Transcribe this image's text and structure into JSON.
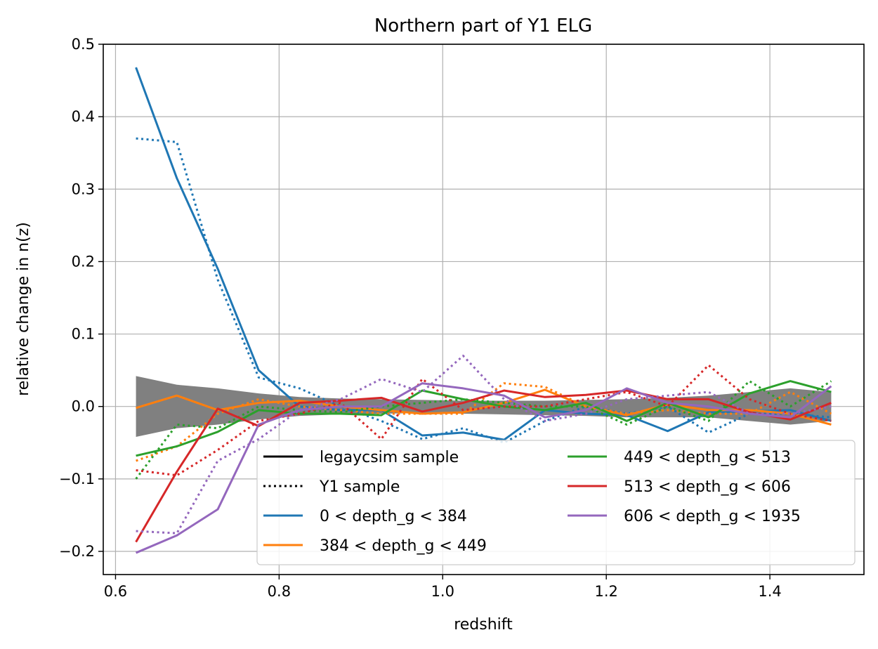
{
  "chart_data": {
    "type": "line",
    "title": "Northern part of Y1 ELG",
    "xlabel": "redshift",
    "ylabel": "relative change in n(z)",
    "xlim": [
      0.585,
      1.515
    ],
    "ylim": [
      -0.232,
      0.5
    ],
    "xticks": [
      0.6,
      0.8,
      1.0,
      1.2,
      1.4
    ],
    "xtick_labels": [
      "0.6",
      "0.8",
      "1.0",
      "1.2",
      "1.4"
    ],
    "yticks": [
      -0.2,
      -0.1,
      0.0,
      0.1,
      0.2,
      0.3,
      0.4,
      0.5
    ],
    "ytick_labels": [
      "−0.2",
      "−0.1",
      "0.0",
      "0.1",
      "0.2",
      "0.3",
      "0.4",
      "0.5"
    ],
    "grid": true,
    "legend_position": "lower-right",
    "legend_entries": [
      {
        "label": "legaycsim sample",
        "color": "#000000",
        "style": "solid"
      },
      {
        "label": "Y1 sample",
        "color": "#000000",
        "style": "dotted"
      },
      {
        "label": "0 < depth_g < 384",
        "color": "#1f77b4",
        "style": "solid"
      },
      {
        "label": "384 < depth_g < 449",
        "color": "#ff7f0e",
        "style": "solid"
      },
      {
        "label": "449 < depth_g < 513",
        "color": "#2ca02c",
        "style": "solid"
      },
      {
        "label": "513 < depth_g < 606",
        "color": "#d62728",
        "style": "solid"
      },
      {
        "label": "606 < depth_g < 1935",
        "color": "#9467bd",
        "style": "solid"
      }
    ],
    "x": [
      0.625,
      0.675,
      0.725,
      0.775,
      0.825,
      0.875,
      0.925,
      0.975,
      1.025,
      1.075,
      1.125,
      1.175,
      1.225,
      1.275,
      1.325,
      1.375,
      1.425,
      1.475
    ],
    "band": {
      "color": "#808080",
      "upper": [
        0.042,
        0.03,
        0.025,
        0.018,
        0.013,
        0.011,
        0.01,
        0.009,
        0.008,
        0.008,
        0.008,
        0.009,
        0.01,
        0.012,
        0.015,
        0.02,
        0.025,
        0.02
      ],
      "lower": [
        -0.042,
        -0.03,
        -0.025,
        -0.018,
        -0.013,
        -0.011,
        -0.01,
        -0.009,
        -0.01,
        -0.011,
        -0.012,
        -0.013,
        -0.015,
        -0.015,
        -0.015,
        -0.02,
        -0.025,
        -0.02
      ]
    },
    "series": [
      {
        "color": "#1f77b4",
        "style": "solid",
        "values": [
          0.468,
          0.315,
          0.19,
          0.05,
          0.0,
          -0.005,
          -0.005,
          -0.04,
          -0.036,
          -0.046,
          -0.005,
          -0.01,
          -0.012,
          -0.034,
          -0.008,
          -0.007,
          -0.005,
          -0.02
        ]
      },
      {
        "color": "#1f77b4",
        "style": "dotted",
        "values": [
          0.37,
          0.365,
          0.175,
          0.04,
          0.025,
          0.0,
          -0.02,
          -0.045,
          -0.03,
          -0.05,
          -0.02,
          0.0,
          -0.01,
          0.0,
          -0.036,
          -0.01,
          -0.01,
          -0.015
        ]
      },
      {
        "color": "#ff7f0e",
        "style": "solid",
        "values": [
          -0.002,
          0.015,
          -0.005,
          0.005,
          0.008,
          0.0,
          -0.005,
          -0.01,
          -0.008,
          0.005,
          0.023,
          0.0,
          -0.012,
          0.003,
          -0.005,
          -0.005,
          -0.01,
          -0.025
        ]
      },
      {
        "color": "#ff7f0e",
        "style": "dotted",
        "values": [
          -0.075,
          -0.055,
          -0.01,
          0.01,
          0.0,
          -0.005,
          -0.01,
          -0.01,
          -0.01,
          0.032,
          0.027,
          0.0,
          -0.01,
          -0.005,
          -0.01,
          -0.01,
          0.02,
          -0.01
        ]
      },
      {
        "color": "#2ca02c",
        "style": "solid",
        "values": [
          -0.068,
          -0.055,
          -0.035,
          -0.005,
          -0.01,
          -0.01,
          -0.012,
          0.022,
          0.01,
          0.0,
          -0.005,
          0.005,
          -0.02,
          0.005,
          -0.015,
          0.018,
          0.035,
          0.02
        ]
      },
      {
        "color": "#2ca02c",
        "style": "dotted",
        "values": [
          -0.1,
          -0.025,
          -0.03,
          0.0,
          -0.005,
          -0.008,
          0.0,
          0.005,
          0.01,
          0.005,
          0.0,
          0.0,
          -0.025,
          0.0,
          -0.02,
          0.035,
          0.0,
          0.035
        ]
      },
      {
        "color": "#d62728",
        "style": "solid",
        "values": [
          -0.187,
          -0.09,
          -0.003,
          -0.027,
          0.005,
          0.008,
          0.012,
          -0.007,
          0.005,
          0.022,
          0.013,
          0.016,
          0.022,
          0.01,
          0.01,
          -0.008,
          -0.018,
          0.005
        ]
      },
      {
        "color": "#d62728",
        "style": "dotted",
        "values": [
          -0.088,
          -0.095,
          -0.06,
          -0.02,
          -0.01,
          0.005,
          -0.045,
          0.038,
          -0.005,
          0.0,
          0.0,
          0.01,
          0.02,
          0.0,
          0.057,
          0.01,
          -0.01,
          -0.02
        ]
      },
      {
        "color": "#9467bd",
        "style": "solid",
        "values": [
          -0.202,
          -0.178,
          -0.142,
          -0.025,
          -0.005,
          0.0,
          0.0,
          0.032,
          0.025,
          0.015,
          -0.015,
          -0.005,
          0.025,
          0.005,
          0.0,
          -0.01,
          -0.015,
          0.028
        ]
      },
      {
        "color": "#9467bd",
        "style": "dotted",
        "values": [
          -0.172,
          -0.175,
          -0.075,
          -0.045,
          -0.005,
          0.01,
          0.038,
          0.02,
          0.07,
          0.01,
          -0.02,
          -0.01,
          0.01,
          0.015,
          0.02,
          -0.01,
          -0.01,
          0.0
        ]
      }
    ]
  }
}
